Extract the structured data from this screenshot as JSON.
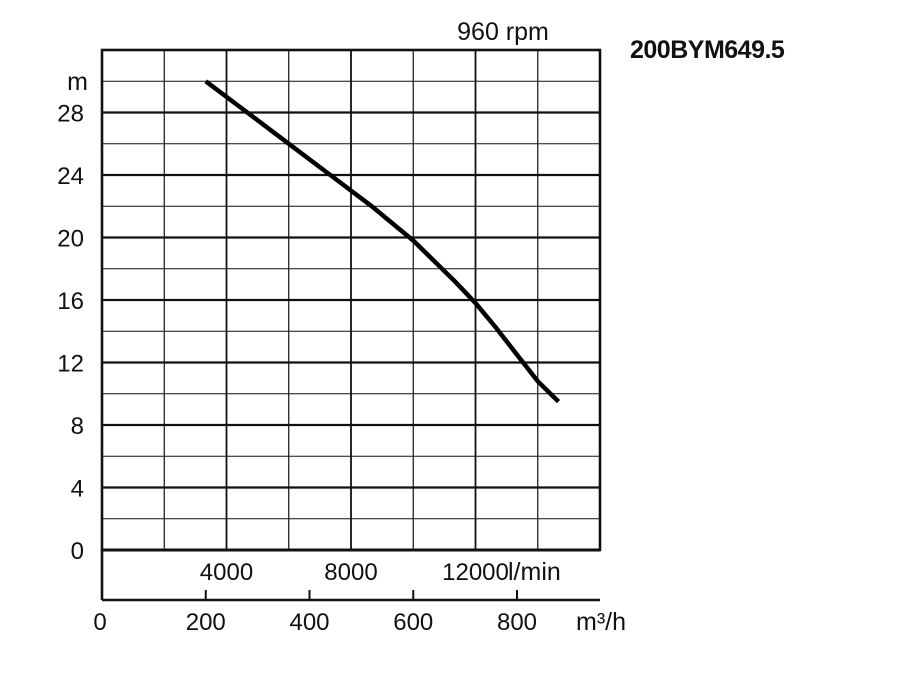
{
  "model": "200BYM649.5",
  "chart_data": {
    "type": "line",
    "title": "960 rpm",
    "ylabel": "m",
    "ylim": [
      0,
      32
    ],
    "yticks": [
      0,
      4,
      8,
      12,
      16,
      20,
      24,
      28
    ],
    "x_lmin_label": "l/min",
    "x_lmin_ticks": [
      4000,
      8000,
      12000
    ],
    "xlabel": "m³/h",
    "xlim": [
      0,
      960
    ],
    "xticks": [
      0,
      200,
      400,
      600,
      800
    ],
    "grid": true,
    "series": [
      {
        "x": [
          200,
          280,
          360,
          440,
          520,
          600,
          680,
          720,
          760,
          800,
          840,
          880
        ],
        "y": [
          30.0,
          28.0,
          26.0,
          24.0,
          22.0,
          19.8,
          17.2,
          15.8,
          14.2,
          12.5,
          10.8,
          9.5
        ]
      }
    ]
  }
}
